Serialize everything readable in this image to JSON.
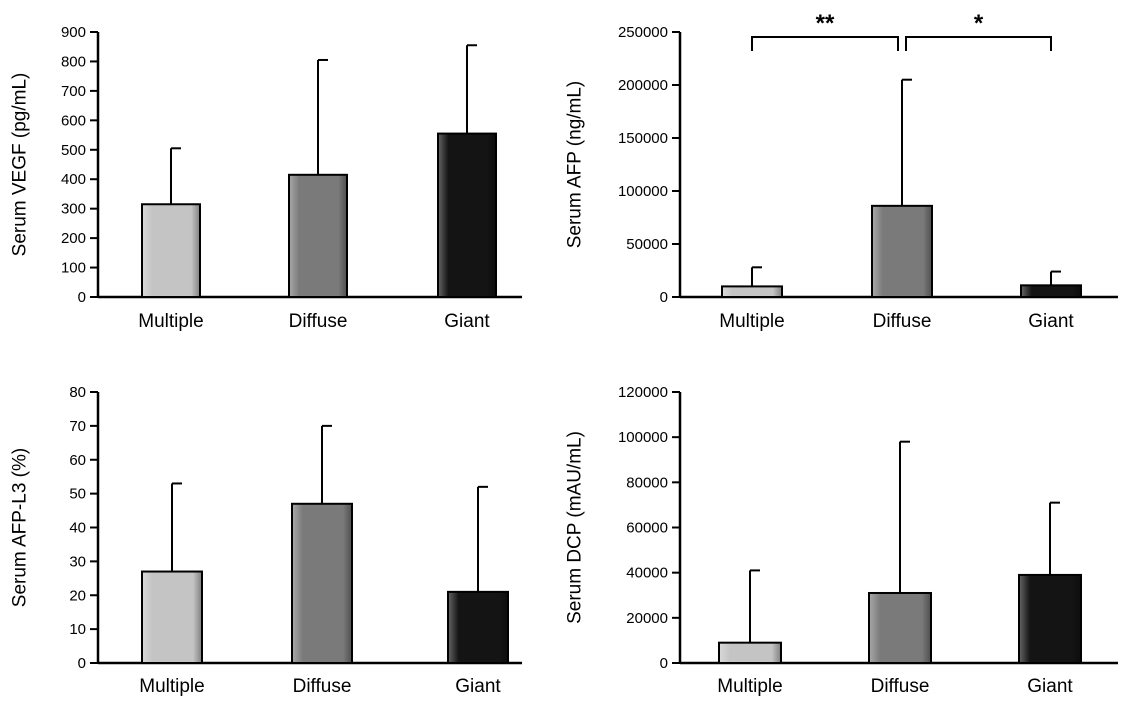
{
  "colors": {
    "Multiple": "#c4c4c4",
    "Diffuse": "#7a7a7a",
    "Giant": "#141414"
  },
  "chart_data": [
    {
      "type": "bar",
      "ylabel": "Serum VEGF (pg/mL)",
      "categories": [
        "Multiple",
        "Diffuse",
        "Giant"
      ],
      "values": [
        315,
        415,
        555
      ],
      "error_upper": [
        505,
        805,
        855
      ],
      "ylim": [
        0,
        900
      ],
      "yticks": [
        0,
        100,
        200,
        300,
        400,
        500,
        600,
        700,
        800,
        900
      ],
      "significance": []
    },
    {
      "type": "bar",
      "ylabel": "Serum AFP (ng/mL)",
      "categories": [
        "Multiple",
        "Diffuse",
        "Giant"
      ],
      "values": [
        10000,
        86000,
        11000
      ],
      "error_upper": [
        28000,
        205000,
        24000
      ],
      "ylim": [
        0,
        250000
      ],
      "yticks": [
        0,
        50000,
        100000,
        150000,
        200000,
        250000
      ],
      "significance": [
        {
          "from": 0,
          "to": 1,
          "label": "**"
        },
        {
          "from": 1,
          "to": 2,
          "label": "*"
        }
      ]
    },
    {
      "type": "bar",
      "ylabel": "Serum AFP-L3 (%)",
      "categories": [
        "Multiple",
        "Diffuse",
        "Giant"
      ],
      "values": [
        27,
        47,
        21
      ],
      "error_upper": [
        53,
        70,
        52
      ],
      "ylim": [
        0,
        80
      ],
      "yticks": [
        0,
        10,
        20,
        30,
        40,
        50,
        60,
        70,
        80
      ],
      "significance": []
    },
    {
      "type": "bar",
      "ylabel": "Serum DCP (mAU/mL)",
      "categories": [
        "Multiple",
        "Diffuse",
        "Giant"
      ],
      "values": [
        9000,
        31000,
        39000
      ],
      "error_upper": [
        41000,
        98000,
        71000
      ],
      "ylim": [
        0,
        120000
      ],
      "yticks": [
        0,
        20000,
        40000,
        60000,
        80000,
        100000,
        120000
      ],
      "significance": []
    }
  ]
}
